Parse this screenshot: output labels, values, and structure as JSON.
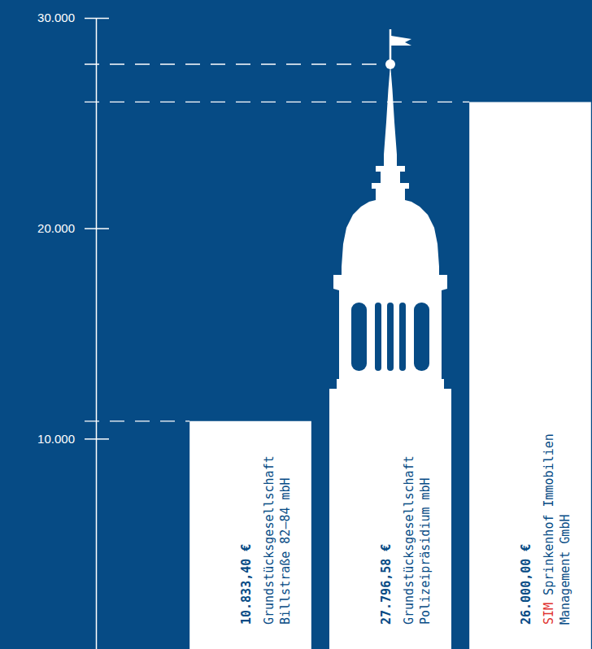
{
  "chart_data": {
    "type": "bar",
    "categories": [
      "Grundstücksgesellschaft Billstraße 82–84 mbH",
      "Grundstücksgesellschaft Polizeipräsidium mbH",
      "SIM Sprinkenhof Immobilien Management GmbH"
    ],
    "values": [
      10833.4,
      27796.58,
      26000
    ],
    "value_labels": [
      "10.833,40 €",
      "27.796,58 €",
      "26.000,00 €"
    ],
    "data_labels": true,
    "color": "#ffffff",
    "ylim": [
      0,
      30000
    ],
    "yticks": [
      {
        "value": 10000,
        "label": "10.000"
      },
      {
        "value": 20000,
        "label": "20.000"
      },
      {
        "value": 30000,
        "label": "30.000"
      }
    ],
    "grid": false
  }
}
